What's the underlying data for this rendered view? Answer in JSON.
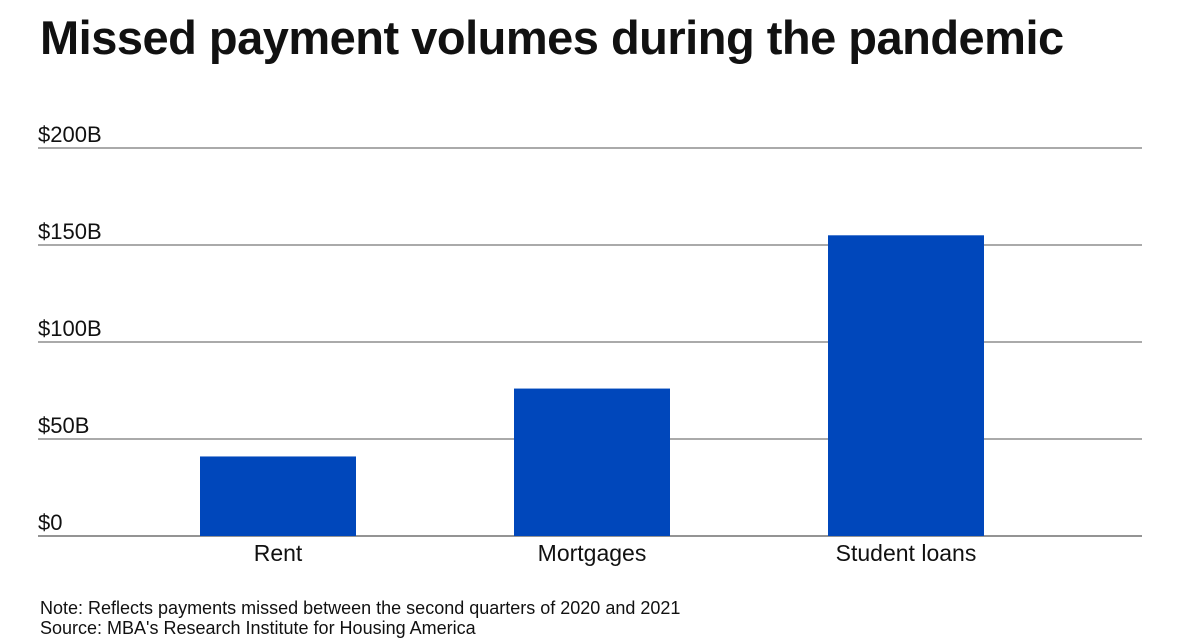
{
  "title": "Missed payment volumes during the pandemic",
  "note": "Note: Reflects payments missed between the second quarters of 2020 and 2021",
  "source": "Source: MBA's Research Institute for Housing America",
  "colors": {
    "bar": "#0047bb",
    "gridline": "#555555",
    "text": "#111111"
  },
  "chart_data": {
    "type": "bar",
    "title": "Missed payment volumes during the pandemic",
    "categories": [
      "Rent",
      "Mortgages",
      "Student loans"
    ],
    "values": [
      41,
      76,
      155
    ],
    "unit": "billions of dollars",
    "ylim": [
      0,
      200
    ],
    "yticks": [
      0,
      50,
      100,
      150,
      200
    ],
    "ytick_labels": [
      "$0",
      "$50B",
      "$100B",
      "$150B",
      "$200B"
    ],
    "xlabel": "",
    "ylabel": "",
    "grid": true,
    "legend": "none"
  }
}
